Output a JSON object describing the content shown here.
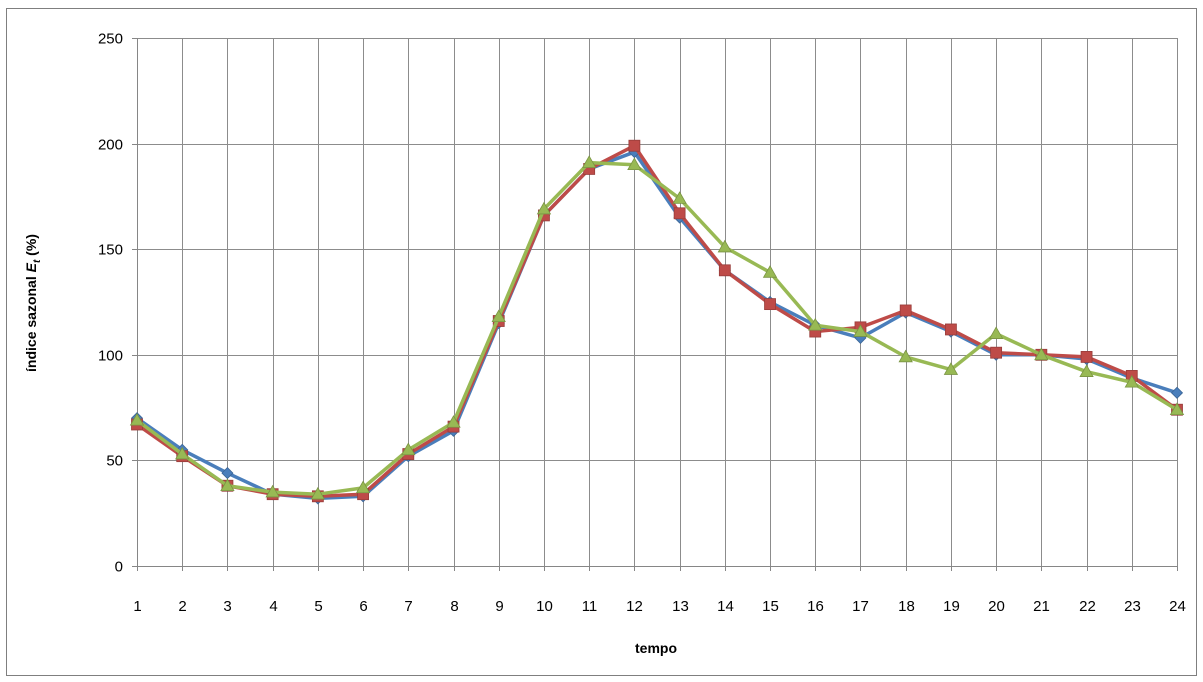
{
  "chart_data": {
    "type": "line",
    "title": "",
    "xlabel": "tempo",
    "ylabel": {
      "prefix": "índice sazonal ",
      "symbol": "E",
      "subscript": "t",
      "suffix": " (%)"
    },
    "x": [
      1,
      2,
      3,
      4,
      5,
      6,
      7,
      8,
      9,
      10,
      11,
      12,
      13,
      14,
      15,
      16,
      17,
      18,
      19,
      20,
      21,
      22,
      23,
      24
    ],
    "ylim": [
      0,
      250
    ],
    "yticks": [
      0,
      50,
      100,
      150,
      200,
      250
    ],
    "grid": true,
    "legend": "none",
    "series": [
      {
        "color": "#4a7ebb",
        "marker": "diamond",
        "values": [
          70,
          55,
          44,
          34,
          32,
          33,
          52,
          64,
          115,
          166,
          188,
          196,
          165,
          140,
          125,
          114,
          108,
          120,
          111,
          100,
          100,
          98,
          89,
          82
        ]
      },
      {
        "color": "#be4b48",
        "marker": "square",
        "values": [
          67,
          52,
          38,
          34,
          33,
          34,
          53,
          66,
          116,
          166,
          188,
          199,
          167,
          140,
          124,
          111,
          113,
          121,
          112,
          101,
          100,
          99,
          90,
          74
        ]
      },
      {
        "color": "#98b954",
        "marker": "triangle",
        "values": [
          69,
          53,
          38,
          35,
          34,
          37,
          55,
          68,
          118,
          169,
          191,
          190,
          174,
          151,
          139,
          114,
          111,
          99,
          93,
          110,
          100,
          92,
          87,
          74
        ]
      }
    ]
  }
}
